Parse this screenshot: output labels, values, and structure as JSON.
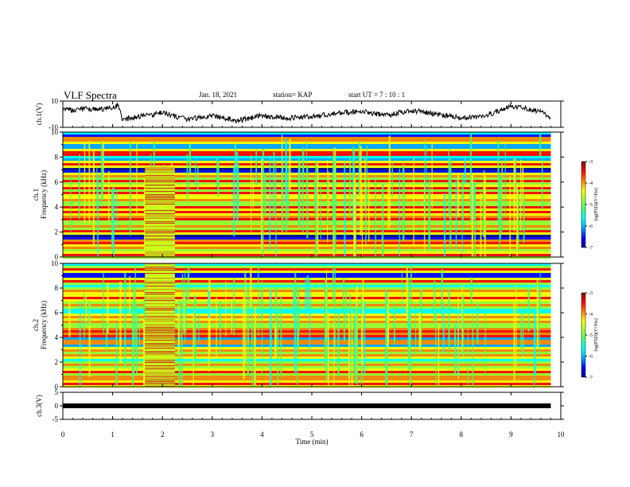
{
  "header": {
    "title": "VLF Spectra",
    "date": "Jan. 18, 2021",
    "station": "station= KAP",
    "start": "start  UT =   7 : 10 : 1"
  },
  "chart_data": [
    {
      "type": "line",
      "panel": "ch1-waveform",
      "ylabel": "ch.1(V)",
      "ylim": [
        -10,
        10
      ],
      "y_ticks": [
        "10",
        "-10"
      ],
      "xlim": [
        0,
        10
      ],
      "x_end": 9.8,
      "x": [
        0,
        0.5,
        1,
        1.1,
        1.2,
        1.5,
        2,
        2.5,
        3,
        3.5,
        4,
        4.5,
        5,
        5.5,
        6,
        6.5,
        7,
        7.5,
        8,
        8.5,
        9,
        9.2,
        9.5,
        9.8
      ],
      "values": [
        3,
        4,
        4,
        7,
        -4,
        -2,
        1,
        -4,
        -1,
        -5,
        -1,
        -3,
        -2,
        1,
        2,
        -1,
        3,
        0,
        -3,
        -1,
        6,
        5,
        3,
        -2
      ],
      "color": "#000000"
    },
    {
      "type": "heatmap",
      "panel": "ch1-spectrogram",
      "ylabel": "ch.1\nFrequency (kHz)",
      "ylim": [
        0,
        10
      ],
      "y_ticks": [
        "0",
        "2",
        "4",
        "6",
        "8",
        "10"
      ],
      "xlim": [
        0,
        10
      ],
      "x_end": 9.8,
      "colorbar": {
        "label": "log(PSD)(V²/Hz)",
        "range": [
          -7,
          -3
        ],
        "ticks": [
          "-3",
          "-4",
          "-5",
          "-6",
          "-7"
        ]
      },
      "bands_khz": [
        0.3,
        0.8,
        1.3,
        2.1,
        2.6,
        3.2,
        3.7,
        4.1,
        4.7,
        5.2,
        5.6,
        6.2,
        6.6,
        7.5,
        8.4,
        9.5
      ],
      "burst": {
        "x": [
          1.65,
          2.25
        ],
        "f": [
          0,
          7.2
        ]
      }
    },
    {
      "type": "heatmap",
      "panel": "ch2-spectrogram",
      "ylabel": "ch.2\nFrequency (kHz)",
      "ylim": [
        0,
        10
      ],
      "y_ticks": [
        "0",
        "2",
        "4",
        "6",
        "8",
        "10"
      ],
      "xlim": [
        0,
        10
      ],
      "x_end": 9.8,
      "colorbar": {
        "label": "log(PSD)(V²/Hz)",
        "range": [
          -7,
          -3
        ],
        "ticks": [
          "-3",
          "-4",
          "-5",
          "-6",
          "-7"
        ]
      },
      "bands_khz": [
        0.3,
        0.8,
        1.3,
        1.9,
        2.6,
        3.1,
        3.7,
        4.3,
        4.7,
        5.3,
        5.8,
        6.7,
        7.3,
        7.8,
        8.6,
        9.6
      ],
      "burst": {
        "x": [
          1.65,
          2.25
        ],
        "f": [
          0,
          10
        ]
      }
    },
    {
      "type": "line",
      "panel": "ch3-waveform",
      "ylabel": "ch.3(V)",
      "ylim": [
        -5,
        5
      ],
      "y_ticks": [
        "5",
        "0",
        "-5"
      ],
      "xlim": [
        0,
        10
      ],
      "x_end": 9.8,
      "x": [
        0,
        9.8
      ],
      "values": [
        0,
        0
      ],
      "color": "#000000"
    }
  ],
  "x_axis": {
    "xlabel": "Time  (min)",
    "ticks": [
      "0",
      "1",
      "2",
      "3",
      "4",
      "5",
      "6",
      "7",
      "8",
      "9",
      "10"
    ]
  },
  "colors": {
    "jet": [
      "#00008f",
      "#0000ff",
      "#00a0ff",
      "#00ffff",
      "#40ff80",
      "#a0ff30",
      "#ffff00",
      "#ff8000",
      "#ff0000",
      "#800000"
    ]
  }
}
